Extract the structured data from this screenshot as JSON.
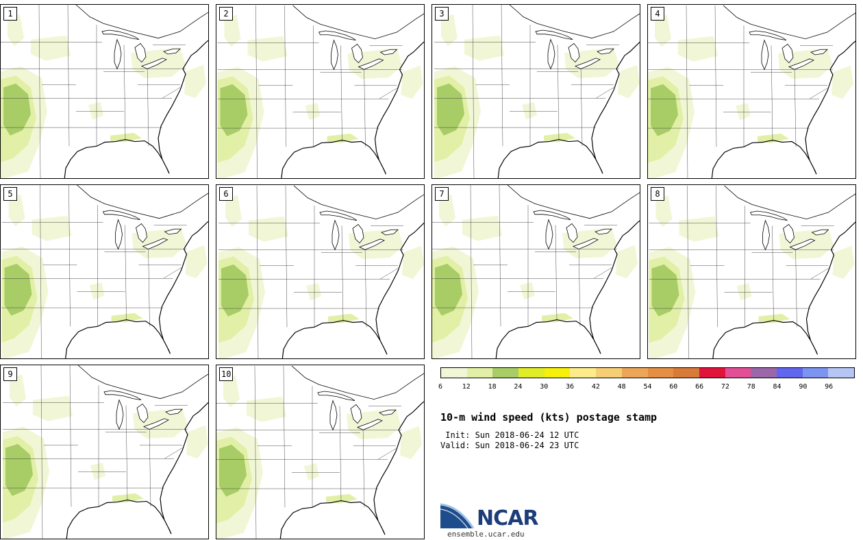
{
  "panels": [
    {
      "label": "1"
    },
    {
      "label": "2"
    },
    {
      "label": "3"
    },
    {
      "label": "4"
    },
    {
      "label": "5"
    },
    {
      "label": "6"
    },
    {
      "label": "7"
    },
    {
      "label": "8"
    },
    {
      "label": "9"
    },
    {
      "label": "10"
    }
  ],
  "colorbar": {
    "ticks": [
      "6",
      "12",
      "18",
      "24",
      "30",
      "36",
      "42",
      "48",
      "54",
      "60",
      "66",
      "72",
      "78",
      "84",
      "90",
      "96"
    ],
    "colors": [
      "#f1f7d6",
      "#e1f0a6",
      "#a8cc66",
      "#e0eb2a",
      "#f7ef0c",
      "#fdec8a",
      "#f6cf75",
      "#eda55a",
      "#e48f44",
      "#d77a3a",
      "#e0143a",
      "#e24f97",
      "#9c67a8",
      "#6166ef",
      "#7d93f0",
      "#b5c5f4"
    ]
  },
  "title": "10-m wind speed (kts) postage stamp",
  "init": " Init: Sun 2018-06-24 12 UTC",
  "valid": "Valid: Sun 2018-06-24 23 UTC",
  "logo": {
    "text": "NCAR",
    "color": "#1d3d7a"
  },
  "site": "ensemble.ucar.edu"
}
